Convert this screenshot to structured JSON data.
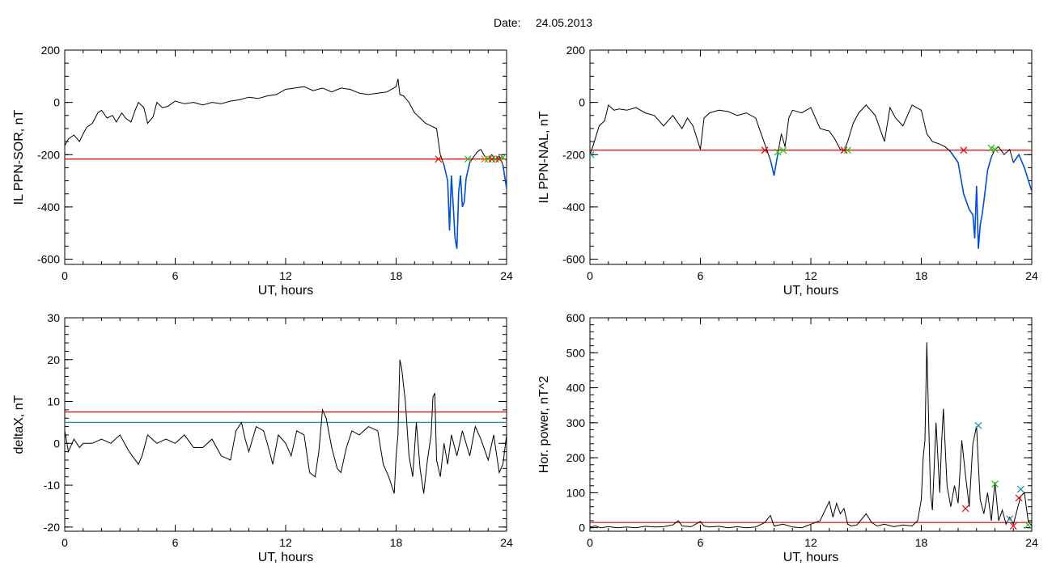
{
  "figure": {
    "date_label": "Date:",
    "date_value": "24.05.2013"
  },
  "colors": {
    "trace": "#000000",
    "threshold_red": "#e00000",
    "threshold_blue": "#1a8cb0",
    "highlight": "#0050d0",
    "marker_red": "#e00000",
    "marker_green": "#20c020",
    "marker_blue": "#1a8cb0",
    "marker_orange": "#e08000"
  },
  "chart_data": [
    {
      "id": "il_sor",
      "type": "line",
      "xlabel": "UT, hours",
      "ylabel": "IL PPN-SOR, nT",
      "xlim": [
        0,
        24
      ],
      "ylim": [
        -620,
        200
      ],
      "xticks": [
        0,
        6,
        12,
        18,
        24
      ],
      "yticks": [
        -600,
        -400,
        -200,
        0,
        200
      ],
      "threshold": -217,
      "highlight_below": true,
      "series": [
        {
          "x": [
            0,
            0.2,
            0.5,
            0.8,
            1.0,
            1.2,
            1.5,
            1.8,
            2.0,
            2.3,
            2.6,
            2.8,
            3.1,
            3.3,
            3.6,
            3.8,
            4.0,
            4.3,
            4.5,
            4.8,
            5.0,
            5.3,
            5.6,
            6.0,
            6.5,
            7.0,
            7.5,
            8.0,
            8.5,
            9.0,
            9.5,
            10.0,
            10.5,
            11.0,
            11.5,
            12.0,
            12.5,
            13.0,
            13.5,
            14.0,
            14.5,
            15.0,
            15.5,
            16.0,
            16.5,
            17.0,
            17.5,
            18.0,
            18.1,
            18.2,
            18.4,
            18.7,
            19.0,
            19.3,
            19.6,
            19.9,
            20.2,
            20.4,
            20.6,
            20.8,
            20.9,
            21.0,
            21.1,
            21.2,
            21.3,
            21.4,
            21.5,
            21.6,
            21.7,
            21.8,
            22.0,
            22.2,
            22.4,
            22.6,
            22.8,
            23.0,
            23.2,
            23.4,
            23.6,
            23.8,
            24.0
          ],
          "y": [
            -165,
            -140,
            -125,
            -150,
            -120,
            -95,
            -80,
            -40,
            -30,
            -60,
            -50,
            -75,
            -40,
            -60,
            -75,
            -35,
            0,
            -20,
            -80,
            -55,
            0,
            -20,
            -15,
            5,
            -5,
            0,
            -10,
            0,
            -5,
            5,
            10,
            20,
            15,
            25,
            30,
            50,
            55,
            60,
            45,
            55,
            40,
            55,
            50,
            35,
            30,
            35,
            40,
            60,
            90,
            30,
            25,
            0,
            -40,
            -60,
            -80,
            -90,
            -100,
            -200,
            -240,
            -300,
            -490,
            -280,
            -390,
            -520,
            -560,
            -340,
            -280,
            -400,
            -380,
            -290,
            -230,
            -210,
            -190,
            -180,
            -205,
            -215,
            -200,
            -220,
            -205,
            -240,
            -330
          ]
        }
      ],
      "markers": [
        {
          "x": 20.3,
          "y": -217,
          "color": "red"
        },
        {
          "x": 21.9,
          "y": -217,
          "color": "green"
        },
        {
          "x": 22.8,
          "y": -217,
          "color": "orange"
        },
        {
          "x": 23.0,
          "y": -217,
          "color": "green"
        },
        {
          "x": 23.2,
          "y": -217,
          "color": "red"
        },
        {
          "x": 23.4,
          "y": -217,
          "color": "green"
        },
        {
          "x": 23.6,
          "y": -217,
          "color": "red"
        },
        {
          "x": 23.8,
          "y": -210,
          "color": "green"
        }
      ]
    },
    {
      "id": "il_nal",
      "type": "line",
      "xlabel": "UT, hours",
      "ylabel": "IL PPN-NAL, nT",
      "xlim": [
        0,
        24
      ],
      "ylim": [
        -620,
        200
      ],
      "xticks": [
        0,
        6,
        12,
        18,
        24
      ],
      "yticks": [
        -600,
        -400,
        -200,
        0,
        200
      ],
      "threshold": -183,
      "highlight_below": true,
      "series": [
        {
          "x": [
            0,
            0.2,
            0.5,
            0.8,
            1.0,
            1.3,
            1.6,
            2.0,
            2.5,
            3.0,
            3.5,
            4.0,
            4.5,
            5.0,
            5.3,
            5.6,
            6.0,
            6.2,
            6.5,
            7.0,
            7.5,
            8.0,
            8.5,
            9.0,
            9.3,
            9.6,
            9.8,
            10.0,
            10.2,
            10.4,
            10.6,
            10.8,
            11.0,
            11.5,
            12.0,
            12.5,
            13.0,
            13.3,
            13.6,
            13.8,
            14.0,
            14.3,
            14.6,
            15.0,
            15.5,
            16.0,
            16.3,
            16.6,
            17.0,
            17.5,
            18.0,
            18.3,
            18.6,
            19.0,
            19.3,
            19.6,
            20.0,
            20.3,
            20.6,
            20.8,
            20.9,
            21.0,
            21.1,
            21.2,
            21.3,
            21.4,
            21.6,
            21.8,
            22.0,
            22.2,
            22.5,
            22.8,
            23.0,
            23.3,
            23.6,
            24.0
          ],
          "y": [
            -200,
            -160,
            -90,
            -70,
            -10,
            -30,
            -25,
            -30,
            -20,
            -40,
            -50,
            -90,
            -50,
            -100,
            -60,
            -90,
            -180,
            -60,
            -40,
            -30,
            -35,
            -50,
            -40,
            -60,
            -120,
            -180,
            -220,
            -280,
            -200,
            -120,
            -170,
            -60,
            -30,
            -40,
            -20,
            -100,
            -110,
            -140,
            -180,
            -185,
            -150,
            -80,
            -40,
            -10,
            -50,
            -150,
            -20,
            -60,
            -90,
            -10,
            -30,
            -120,
            -150,
            -160,
            -170,
            -190,
            -230,
            -350,
            -410,
            -430,
            -520,
            -320,
            -560,
            -470,
            -430,
            -380,
            -260,
            -210,
            -180,
            -170,
            -200,
            -180,
            -230,
            -200,
            -250,
            -340
          ]
        }
      ],
      "markers": [
        {
          "x": 0.05,
          "y": -200,
          "color": "blue"
        },
        {
          "x": 9.5,
          "y": -183,
          "color": "red"
        },
        {
          "x": 10.2,
          "y": -190,
          "color": "green"
        },
        {
          "x": 10.5,
          "y": -183,
          "color": "green"
        },
        {
          "x": 13.8,
          "y": -183,
          "color": "red"
        },
        {
          "x": 14.0,
          "y": -183,
          "color": "green"
        },
        {
          "x": 20.3,
          "y": -183,
          "color": "red"
        },
        {
          "x": 21.8,
          "y": -175,
          "color": "green"
        },
        {
          "x": 22.0,
          "y": -180,
          "color": "green"
        }
      ]
    },
    {
      "id": "deltax",
      "type": "line",
      "xlabel": "UT, hours",
      "ylabel": "deltaX, nT",
      "xlim": [
        0,
        24
      ],
      "ylim": [
        -21,
        30
      ],
      "xticks": [
        0,
        6,
        12,
        18,
        24
      ],
      "yticks": [
        -20,
        -10,
        0,
        10,
        20,
        30
      ],
      "threshold_red": 7.5,
      "threshold_blue": 5,
      "series": [
        {
          "x": [
            0,
            0.2,
            0.5,
            0.8,
            1.0,
            1.5,
            2.0,
            2.5,
            3.0,
            3.5,
            4.0,
            4.2,
            4.5,
            5.0,
            5.5,
            6.0,
            6.5,
            7.0,
            7.5,
            8.0,
            8.5,
            9.0,
            9.3,
            9.6,
            9.8,
            10.0,
            10.4,
            10.8,
            11.0,
            11.3,
            11.6,
            12.0,
            12.3,
            12.6,
            13.0,
            13.3,
            13.6,
            13.8,
            14.0,
            14.2,
            14.5,
            14.8,
            15.0,
            15.3,
            15.6,
            16.0,
            16.5,
            17.0,
            17.3,
            17.6,
            17.9,
            18.0,
            18.1,
            18.2,
            18.3,
            18.5,
            18.7,
            18.9,
            19.1,
            19.3,
            19.5,
            19.7,
            19.9,
            20.0,
            20.1,
            20.2,
            20.4,
            20.6,
            20.8,
            21.0,
            21.3,
            21.6,
            22.0,
            22.3,
            22.6,
            23.0,
            23.3,
            23.6,
            23.8,
            24.0
          ],
          "y": [
            3,
            -2,
            1,
            -1,
            0,
            0,
            1,
            0,
            2,
            -2,
            -5,
            -3,
            2,
            0,
            1,
            0,
            2,
            -1,
            -1,
            1,
            -3,
            -4,
            3,
            5,
            1,
            -2,
            4,
            3,
            0,
            -5,
            2,
            0,
            -3,
            3,
            2,
            -7,
            -8,
            -2,
            8,
            6,
            -1,
            -6,
            -7,
            -1,
            3,
            2,
            4,
            3,
            -5,
            -8,
            -12,
            -3,
            2,
            20,
            18,
            10,
            -3,
            -8,
            5,
            -6,
            -12,
            -4,
            2,
            11,
            12,
            -4,
            -8,
            0,
            -5,
            2,
            -3,
            3,
            -3,
            4,
            1,
            -4,
            2,
            -7,
            -5,
            2
          ]
        }
      ]
    },
    {
      "id": "hor_power",
      "type": "line",
      "xlabel": "UT, hours",
      "ylabel": "Hor. power, nT^2",
      "xlim": [
        0,
        24
      ],
      "ylim": [
        -10,
        600
      ],
      "xticks": [
        0,
        6,
        12,
        18,
        24
      ],
      "yticks": [
        0,
        100,
        200,
        300,
        400,
        500,
        600
      ],
      "threshold": 15,
      "series": [
        {
          "x": [
            0,
            0.3,
            0.6,
            1.0,
            1.5,
            2.0,
            2.5,
            3.0,
            3.5,
            4.0,
            4.5,
            4.8,
            5.0,
            5.5,
            6.0,
            6.2,
            6.5,
            7.0,
            7.5,
            8.0,
            8.5,
            9.0,
            9.5,
            9.8,
            10.0,
            10.5,
            11.0,
            11.5,
            12.0,
            12.5,
            13.0,
            13.2,
            13.4,
            13.6,
            13.8,
            14.0,
            14.2,
            14.5,
            15.0,
            15.3,
            15.6,
            16.0,
            16.5,
            17.0,
            17.5,
            17.8,
            18.0,
            18.1,
            18.2,
            18.3,
            18.4,
            18.5,
            18.6,
            18.8,
            19.0,
            19.1,
            19.2,
            19.4,
            19.6,
            19.8,
            20.0,
            20.2,
            20.4,
            20.6,
            20.8,
            21.0,
            21.1,
            21.2,
            21.4,
            21.6,
            21.8,
            22.0,
            22.2,
            22.4,
            22.6,
            22.8,
            23.0,
            23.2,
            23.4,
            23.6,
            23.8,
            24.0
          ],
          "y": [
            2,
            5,
            0,
            3,
            0,
            2,
            0,
            4,
            2,
            3,
            8,
            20,
            5,
            3,
            18,
            5,
            2,
            4,
            0,
            3,
            0,
            2,
            15,
            35,
            5,
            10,
            2,
            0,
            10,
            20,
            75,
            30,
            70,
            40,
            55,
            10,
            5,
            8,
            40,
            15,
            5,
            10,
            3,
            8,
            5,
            20,
            80,
            200,
            250,
            530,
            300,
            100,
            50,
            300,
            100,
            240,
            340,
            120,
            60,
            120,
            70,
            250,
            150,
            60,
            240,
            290,
            180,
            80,
            40,
            100,
            20,
            130,
            20,
            50,
            10,
            30,
            10,
            50,
            90,
            100,
            20,
            5
          ]
        }
      ],
      "markers": [
        {
          "x": 20.4,
          "y": 55,
          "color": "red"
        },
        {
          "x": 21.1,
          "y": 292,
          "color": "blue"
        },
        {
          "x": 22.0,
          "y": 125,
          "color": "green"
        },
        {
          "x": 22.8,
          "y": 25,
          "color": "blue"
        },
        {
          "x": 23.0,
          "y": 5,
          "color": "red"
        },
        {
          "x": 23.3,
          "y": 85,
          "color": "red"
        },
        {
          "x": 23.4,
          "y": 110,
          "color": "blue"
        },
        {
          "x": 23.8,
          "y": 8,
          "color": "green"
        }
      ]
    }
  ]
}
